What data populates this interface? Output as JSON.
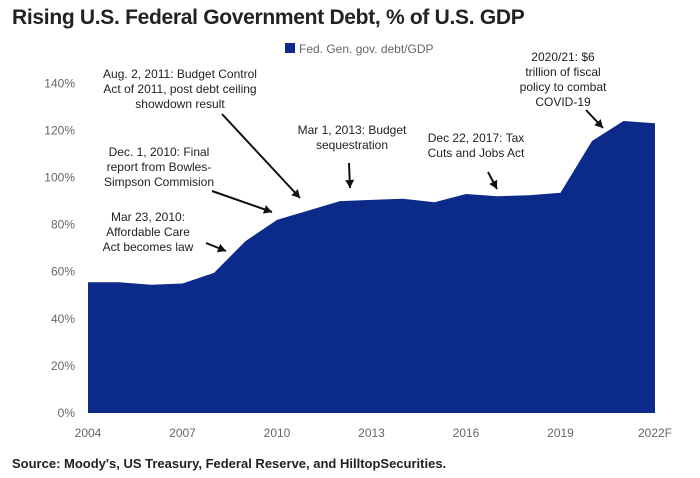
{
  "chart_data": {
    "type": "area",
    "title": "Rising U.S. Federal Government Debt, % of U.S. GDP",
    "source": "Source: Moody's, US Treasury, Federal Reserve, and HilltopSecurities.",
    "x_categories": [
      "2004",
      "2005",
      "2006",
      "2007",
      "2008",
      "2009",
      "2010",
      "2011",
      "2012",
      "2013",
      "2014",
      "2015",
      "2016",
      "2017",
      "2018",
      "2019",
      "2020",
      "2021",
      "2022F"
    ],
    "x_tick_labels": [
      "2004",
      "2007",
      "2010",
      "2013",
      "2016",
      "2019",
      "2022F"
    ],
    "y_ticks": [
      "0%",
      "20%",
      "40%",
      "60%",
      "80%",
      "100%",
      "120%",
      "140%"
    ],
    "ylim": [
      0,
      150
    ],
    "grid": false,
    "legend_position": "top",
    "series": [
      {
        "name": "Fed. Gen. gov. debt/GDP",
        "color": "#0b2a8a",
        "values": [
          55.5,
          55.5,
          54.5,
          55.0,
          59.5,
          73.0,
          82.0,
          86.0,
          90.0,
          90.5,
          91.0,
          89.5,
          93.0,
          92.0,
          92.5,
          93.5,
          115.5,
          124.0,
          123.0
        ]
      }
    ],
    "annotations": [
      {
        "lines": [
          "Aug. 2, 2011: Budget Control",
          "Act of 2011, post debt ceiling",
          "showdown result"
        ]
      },
      {
        "lines": [
          "Dec. 1, 2010: Final",
          "report from Bowles-",
          "Simpson Commision"
        ]
      },
      {
        "lines": [
          "Mar 23, 2010:",
          "Affordable Care",
          "Act becomes law"
        ]
      },
      {
        "lines": [
          "Mar 1, 2013: Budget",
          "sequestration"
        ]
      },
      {
        "lines": [
          "Dec 22, 2017: Tax",
          "Cuts and Jobs Act"
        ]
      },
      {
        "lines": [
          "2020/21: $6",
          "trillion of fiscal",
          "policy to combat",
          "COVID-19"
        ]
      }
    ]
  }
}
